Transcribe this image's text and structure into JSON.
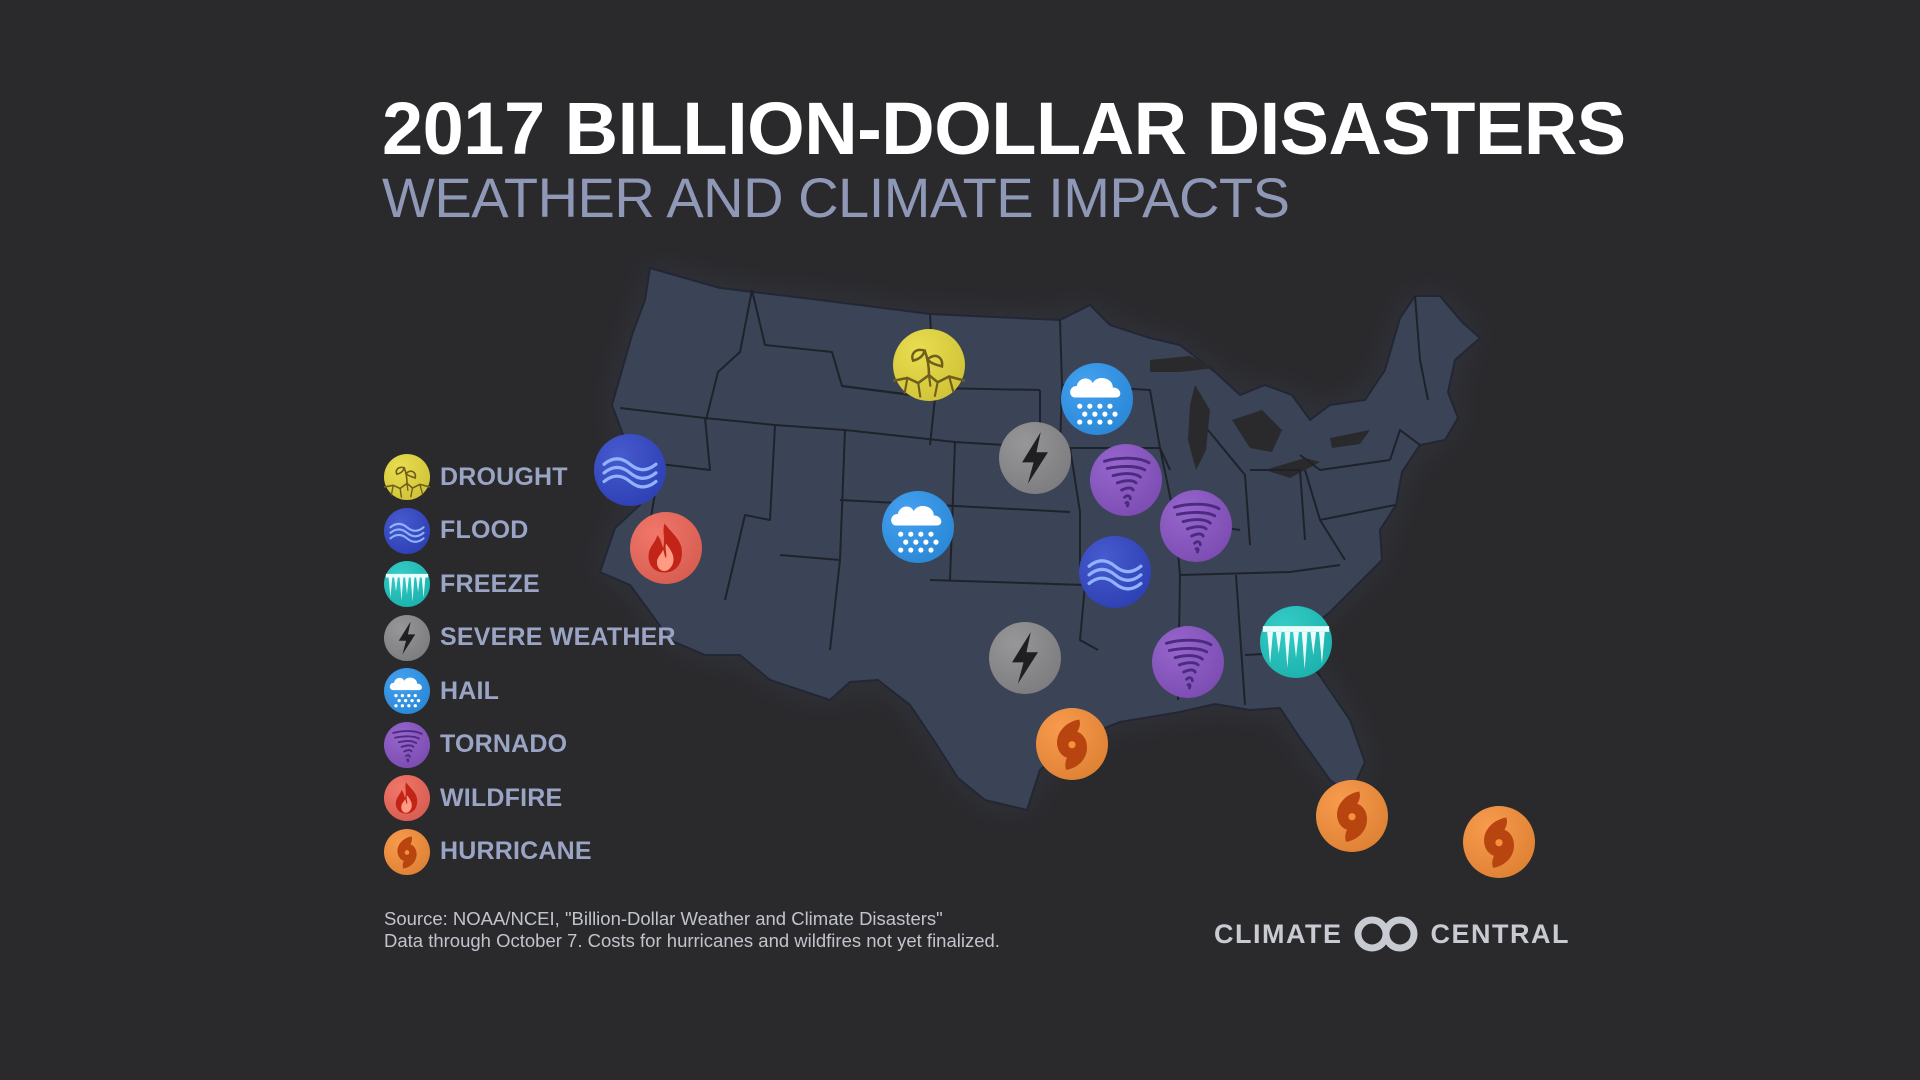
{
  "header": {
    "title": "2017 BILLION-DOLLAR DISASTERS",
    "subtitle": "WEATHER AND CLIMATE IMPACTS"
  },
  "colors": {
    "background": "#2a2a2d",
    "land": "#3b4356",
    "state_border": "#1e222b",
    "drought": "#e7d93d",
    "flood": "#3348c8",
    "freeze": "#1fc6c0",
    "severe_weather": "#8b8b8d",
    "hail": "#2f97ee",
    "tornado": "#8a55c6",
    "wildfire": "#f0685a",
    "hurricane": "#f7903a"
  },
  "legend": [
    {
      "type": "drought",
      "label": "DROUGHT",
      "icon": "drought-icon"
    },
    {
      "type": "flood",
      "label": "FLOOD",
      "icon": "flood-icon"
    },
    {
      "type": "freeze",
      "label": "FREEZE",
      "icon": "freeze-icon"
    },
    {
      "type": "severe_weather",
      "label": "SEVERE WEATHER",
      "icon": "severe-weather-icon"
    },
    {
      "type": "hail",
      "label": "HAIL",
      "icon": "hail-icon"
    },
    {
      "type": "tornado",
      "label": "TORNADO",
      "icon": "tornado-icon"
    },
    {
      "type": "wildfire",
      "label": "WILDFIRE",
      "icon": "wildfire-icon"
    },
    {
      "type": "hurricane",
      "label": "HURRICANE",
      "icon": "hurricane-icon"
    }
  ],
  "map": {
    "region": "Contiguous United States",
    "events": [
      {
        "type": "drought",
        "location": "Montana / North Dakota"
      },
      {
        "type": "flood",
        "location": "Northern California"
      },
      {
        "type": "wildfire",
        "location": "California"
      },
      {
        "type": "hail",
        "location": "Minnesota"
      },
      {
        "type": "severe_weather",
        "location": "South Dakota / Nebraska"
      },
      {
        "type": "tornado",
        "location": "Iowa"
      },
      {
        "type": "hail",
        "location": "Colorado"
      },
      {
        "type": "tornado",
        "location": "Illinois"
      },
      {
        "type": "flood",
        "location": "Missouri"
      },
      {
        "type": "severe_weather",
        "location": "Texas / Oklahoma"
      },
      {
        "type": "tornado",
        "location": "Mississippi / Alabama"
      },
      {
        "type": "freeze",
        "location": "Georgia / South Carolina"
      },
      {
        "type": "hurricane",
        "location": "Texas Gulf Coast"
      },
      {
        "type": "hurricane",
        "location": "Florida"
      },
      {
        "type": "hurricane",
        "location": "Caribbean"
      }
    ]
  },
  "source": {
    "line1": "Source: NOAA/NCEI, \"Billion-Dollar Weather and Climate Disasters\"",
    "line2": "Data through October 7. Costs for hurricanes and wildfires not yet finalized."
  },
  "brand": {
    "left": "CLIMATE",
    "right": "CENTRAL"
  }
}
